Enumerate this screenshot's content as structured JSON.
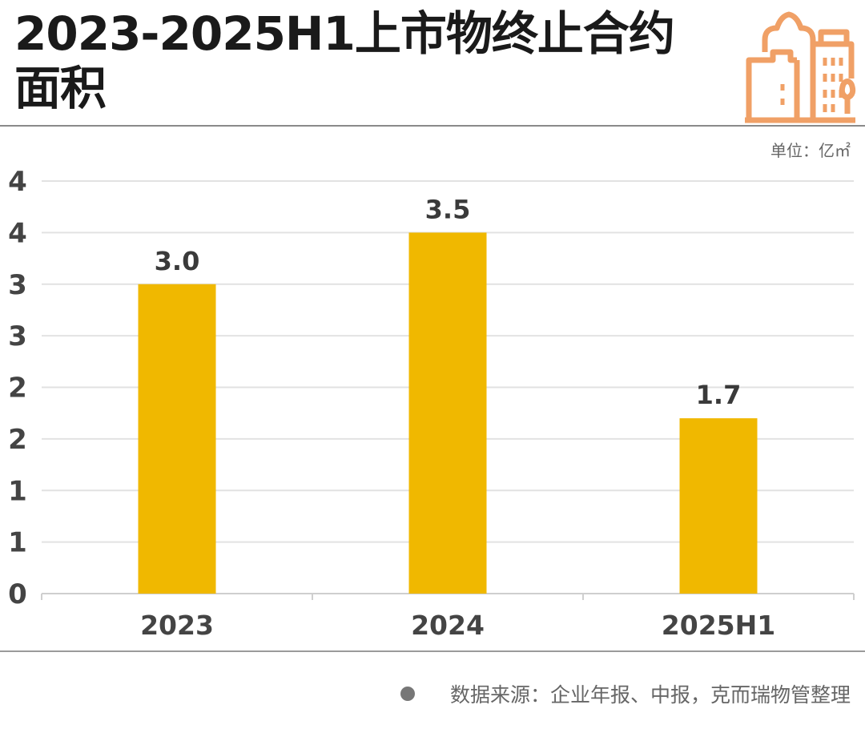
{
  "header": {
    "title": "2023-2025H1上市物终止合约面积",
    "unit": "单位：亿㎡",
    "icon": "city-buildings-icon"
  },
  "footer": {
    "source": "数据来源：企业年报、中报，克而瑞物管整理"
  },
  "colors": {
    "bar": "#F0B800",
    "icon": "#F0A066",
    "grid": "#e2e2e2",
    "text": "#3a3a3a"
  },
  "chart_data": {
    "type": "bar",
    "categories": [
      "2023",
      "2024",
      "2025H1"
    ],
    "values": [
      3.0,
      3.5,
      1.7
    ],
    "data_labels": [
      "3.0",
      "3.5",
      "1.7"
    ],
    "title": "2023-2025H1上市物终止合约面积",
    "xlabel": "",
    "ylabel": "",
    "unit": "亿㎡",
    "ylim": [
      0,
      4
    ],
    "y_ticks": [
      0,
      0.5,
      1,
      1.5,
      2,
      2.5,
      3,
      3.5,
      4
    ],
    "y_tick_labels": [
      "0",
      "1",
      "1",
      "2",
      "2",
      "3",
      "3",
      "4",
      "4"
    ],
    "grid": true,
    "legend": "none"
  }
}
